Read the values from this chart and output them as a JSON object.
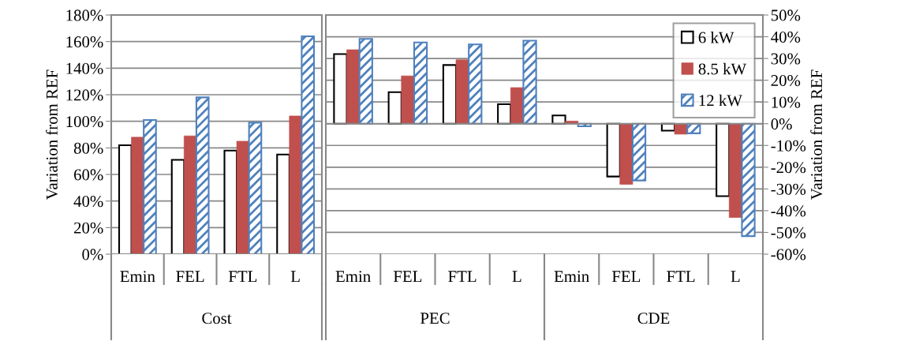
{
  "chart_data": [
    {
      "type": "bar",
      "ylabel": "Variation from REF",
      "xlabel": "Cost",
      "categories": [
        "Emin",
        "FEL",
        "FTL",
        "L"
      ],
      "series": [
        {
          "color": "#ffffff",
          "values": [
            82,
            71,
            78,
            75
          ]
        },
        {
          "color": "#c0504d",
          "values": [
            88,
            89,
            85,
            104
          ]
        },
        {
          "color": "#4f81bd",
          "values": [
            101,
            118,
            99,
            164
          ]
        }
      ],
      "ylim": [
        0,
        180
      ],
      "yticks": [
        {
          "value": 0,
          "label": "0%"
        },
        {
          "value": 20,
          "label": "20%"
        },
        {
          "value": 40,
          "label": "40%"
        },
        {
          "value": 60,
          "label": "60%"
        },
        {
          "value": 80,
          "label": "80%"
        },
        {
          "value": 100,
          "label": "100%"
        },
        {
          "value": 120,
          "label": "120%"
        },
        {
          "value": 140,
          "label": "140%"
        },
        {
          "value": 160,
          "label": "160%"
        },
        {
          "value": 180,
          "label": "180%"
        }
      ],
      "grid": "y",
      "legend": false
    },
    {
      "type": "bar",
      "ylabel": "Variation from REF",
      "categories": [
        "Emin",
        "FEL",
        "FTL",
        "L",
        "Emin",
        "FEL",
        "FTL",
        "L"
      ],
      "annotations": [
        "PEC",
        "CDE"
      ],
      "series": [
        {
          "name": "6 kW",
          "color": "#ffffff",
          "values": [
            32,
            14.5,
            27,
            9,
            3.8,
            -24.3,
            -3.2,
            -33.3
          ]
        },
        {
          "name": "8.5 kW",
          "color": "#c0504d",
          "values": [
            34,
            22,
            29.4,
            16.6,
            1.2,
            -27.9,
            -4.8,
            -43.1
          ]
        },
        {
          "name": "12 kW",
          "color": "#4f81bd",
          "values": [
            39,
            37.4,
            36.5,
            38.2,
            -1.2,
            -26.1,
            -4.4,
            -51.7
          ]
        }
      ],
      "ylim": [
        -60,
        50
      ],
      "yticks": [
        {
          "value": -60,
          "label": "-60%"
        },
        {
          "value": -50,
          "label": "-50%"
        },
        {
          "value": -40,
          "label": "-40%"
        },
        {
          "value": -30,
          "label": "-30%"
        },
        {
          "value": -20,
          "label": "-20%"
        },
        {
          "value": -10,
          "label": "-10%"
        },
        {
          "value": 0,
          "label": "0%"
        },
        {
          "value": 10,
          "label": "10%"
        },
        {
          "value": 20,
          "label": "20%"
        },
        {
          "value": 30,
          "label": "30%"
        },
        {
          "value": 40,
          "label": "40%"
        },
        {
          "value": 50,
          "label": "50%"
        }
      ],
      "grid": "y",
      "legend": "top right"
    }
  ]
}
